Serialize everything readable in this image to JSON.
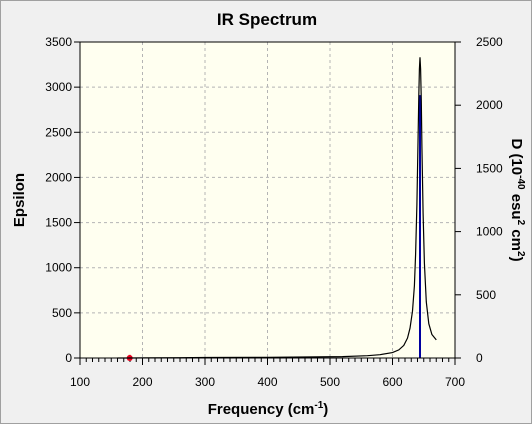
{
  "chart_data": {
    "type": "line",
    "title": "IR Spectrum",
    "xlabel": {
      "text": "Frequency (cm",
      "sup": "-1",
      "close": ")"
    },
    "ylabel_left": "Epsilon",
    "ylabel_right": {
      "p1": "D (10",
      "s1": "-40",
      "p2": " esu",
      "s2": "2",
      "p3": " cm",
      "s3": "2",
      "p4": ")"
    },
    "xlim": [
      100,
      700
    ],
    "ylim_left": [
      0,
      3500
    ],
    "ylim_right": [
      0,
      2500
    ],
    "x_ticks": [
      100,
      200,
      300,
      400,
      500,
      600,
      700
    ],
    "y_left_ticks": [
      0,
      500,
      1000,
      1500,
      2000,
      2500,
      3000,
      3500
    ],
    "y_right_ticks": [
      0,
      500,
      1000,
      1500,
      2000,
      2500
    ],
    "grid": true,
    "series": [
      {
        "axis": "left",
        "points": [
          [
            160,
            0
          ],
          [
            179,
            0
          ],
          [
            200,
            1
          ],
          [
            260,
            3
          ],
          [
            300,
            5
          ],
          [
            400,
            8
          ],
          [
            480,
            12
          ],
          [
            520,
            16
          ],
          [
            560,
            25
          ],
          [
            580,
            36
          ],
          [
            600,
            60
          ],
          [
            610,
            90
          ],
          [
            618,
            140
          ],
          [
            624,
            220
          ],
          [
            628,
            330
          ],
          [
            632,
            520
          ],
          [
            635,
            800
          ],
          [
            637,
            1150
          ],
          [
            639,
            1700
          ],
          [
            641,
            2450
          ],
          [
            642,
            2900
          ],
          [
            643,
            3200
          ],
          [
            644,
            3330
          ],
          [
            645,
            3200
          ],
          [
            646,
            2850
          ],
          [
            647,
            2350
          ],
          [
            649,
            1600
          ],
          [
            651,
            1050
          ],
          [
            654,
            620
          ],
          [
            658,
            380
          ],
          [
            663,
            260
          ],
          [
            670,
            200
          ]
        ]
      }
    ],
    "sticks": [
      {
        "x": 179.5,
        "intensity": 25,
        "color": "#e8001c"
      },
      {
        "x": 644,
        "intensity": 2080,
        "color": "#0000a0"
      }
    ]
  }
}
